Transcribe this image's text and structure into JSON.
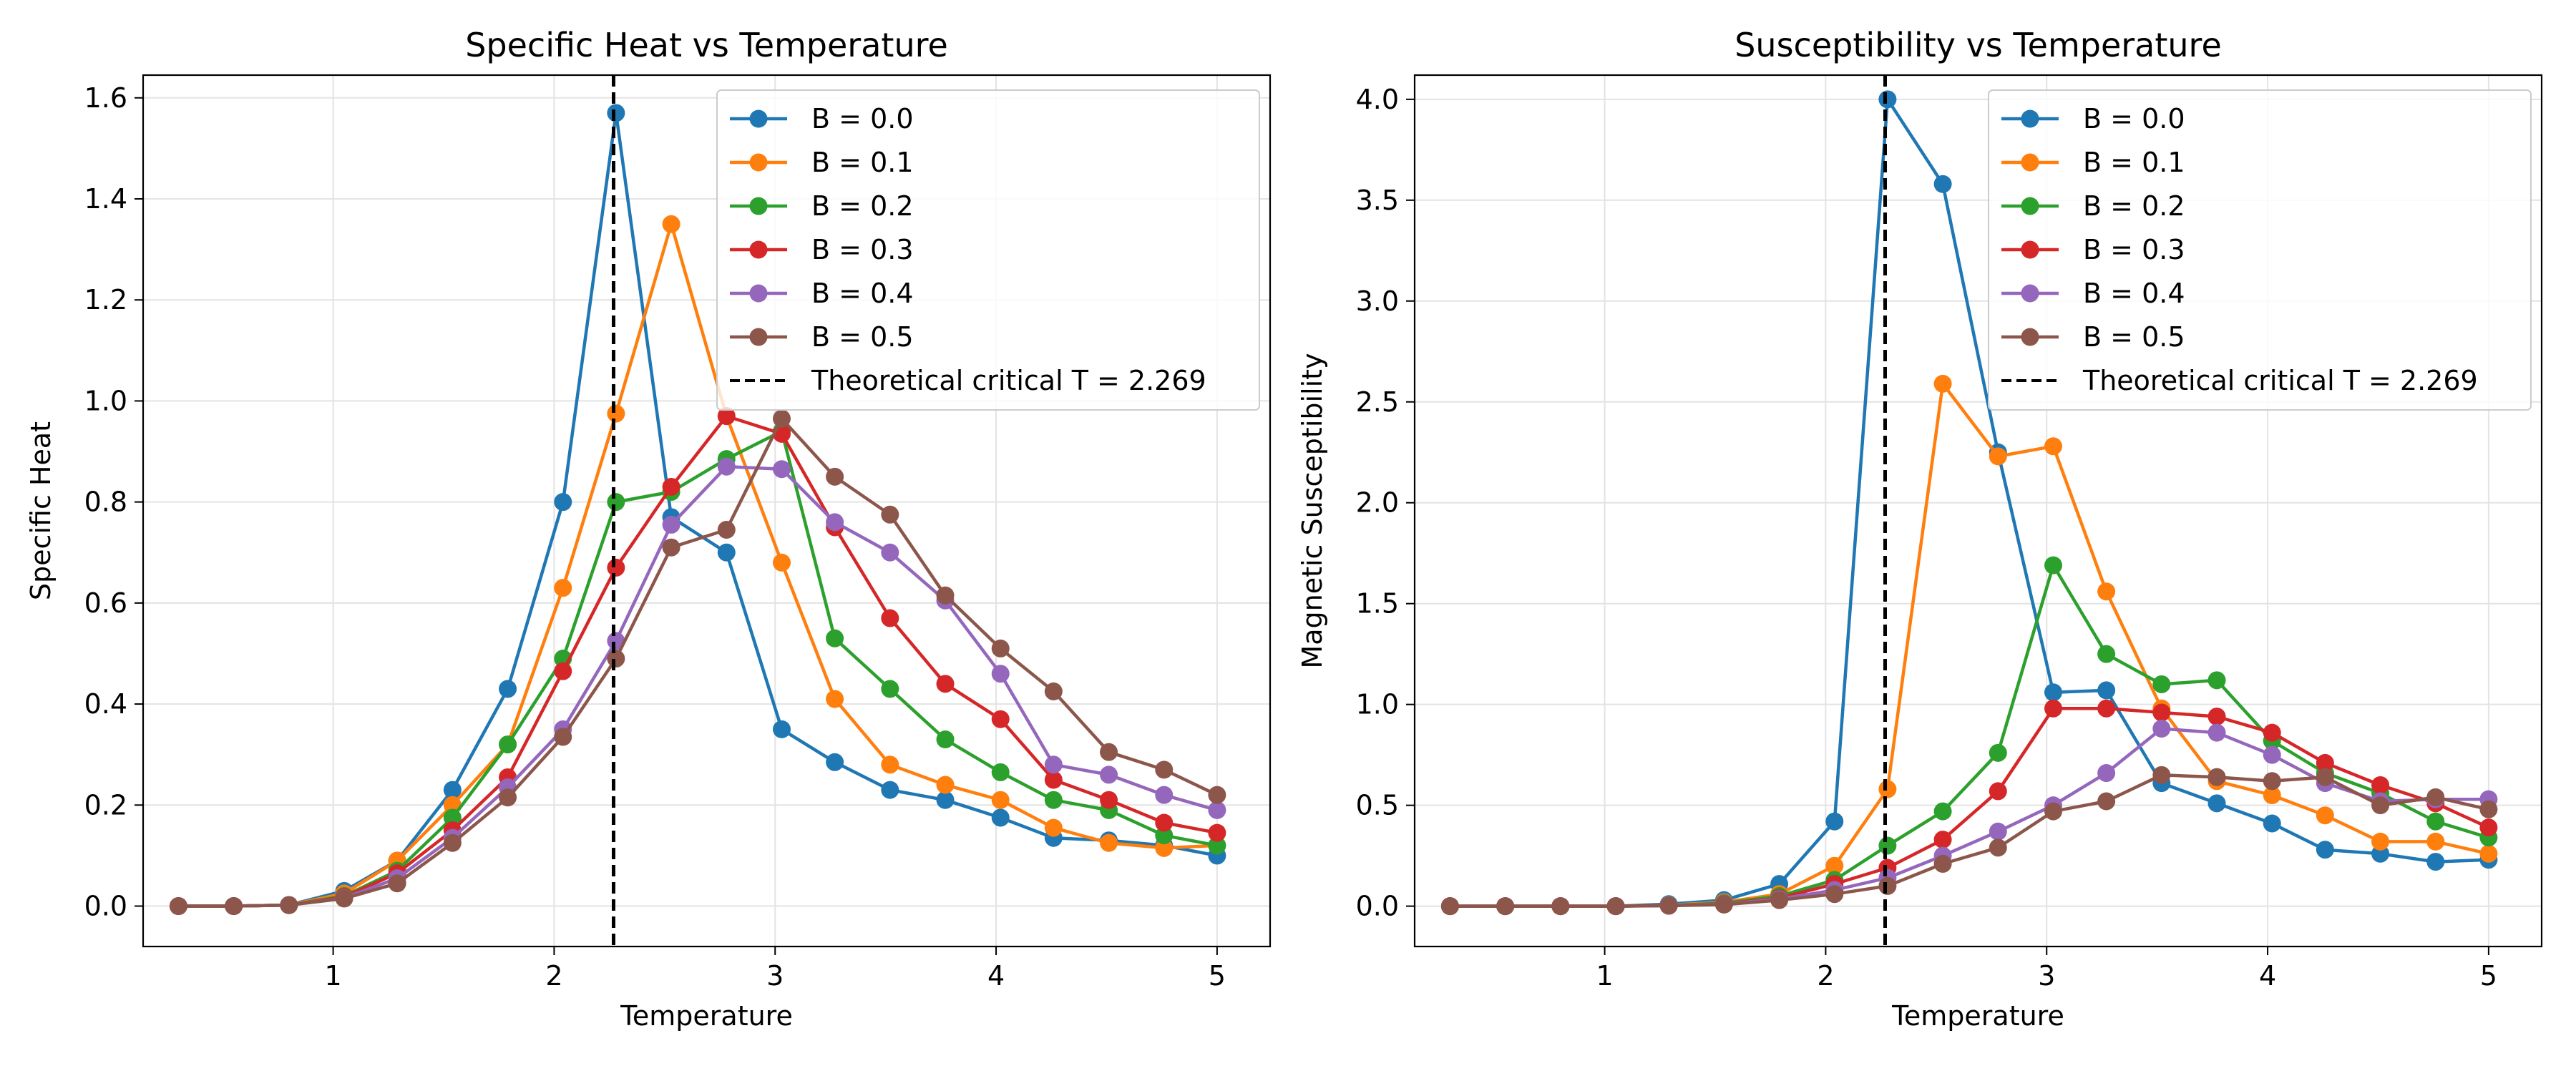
{
  "figure": {
    "background": "#ffffff"
  },
  "chart_data": [
    {
      "type": "line",
      "title": "Specific Heat vs Temperature",
      "xlabel": "Temperature",
      "ylabel": "Specific Heat",
      "xlim": [
        0.14,
        5.24
      ],
      "ylim": [
        -0.08,
        1.645
      ],
      "xticks": [
        1,
        2,
        3,
        4,
        5
      ],
      "xtick_labels": [
        "1",
        "2",
        "3",
        "4",
        "5"
      ],
      "yticks": [
        0.0,
        0.2,
        0.4,
        0.6,
        0.8,
        1.0,
        1.2,
        1.4,
        1.6
      ],
      "ytick_labels": [
        "0.0",
        "0.2",
        "0.4",
        "0.6",
        "0.8",
        "1.0",
        "1.2",
        "1.4",
        "1.6"
      ],
      "grid": true,
      "legend_position": "upper right",
      "x": [
        0.3,
        0.55,
        0.8,
        1.05,
        1.29,
        1.54,
        1.79,
        2.04,
        2.28,
        2.53,
        2.78,
        3.03,
        3.27,
        3.52,
        3.77,
        4.02,
        4.26,
        4.51,
        4.76,
        5.0
      ],
      "series": [
        {
          "name": "B = 0.0",
          "color": "#1f77b4",
          "values": [
            0.0,
            0.0,
            0.002,
            0.03,
            0.09,
            0.23,
            0.43,
            0.8,
            1.57,
            0.77,
            0.7,
            0.35,
            0.285,
            0.23,
            0.21,
            0.175,
            0.135,
            0.13,
            0.12,
            0.1
          ]
        },
        {
          "name": "B = 0.1",
          "color": "#ff7f0e",
          "values": [
            0.0,
            0.0,
            0.002,
            0.025,
            0.09,
            0.2,
            0.32,
            0.63,
            0.975,
            1.35,
            0.97,
            0.68,
            0.41,
            0.28,
            0.24,
            0.21,
            0.155,
            0.125,
            0.115,
            0.12
          ]
        },
        {
          "name": "B = 0.2",
          "color": "#2ca02c",
          "values": [
            0.0,
            0.0,
            0.002,
            0.02,
            0.07,
            0.175,
            0.32,
            0.49,
            0.8,
            0.82,
            0.885,
            0.94,
            0.53,
            0.43,
            0.33,
            0.265,
            0.21,
            0.19,
            0.14,
            0.12
          ]
        },
        {
          "name": "B = 0.3",
          "color": "#d62728",
          "values": [
            0.0,
            0.0,
            0.002,
            0.018,
            0.065,
            0.15,
            0.255,
            0.465,
            0.67,
            0.83,
            0.97,
            0.935,
            0.75,
            0.57,
            0.44,
            0.37,
            0.25,
            0.21,
            0.165,
            0.145
          ]
        },
        {
          "name": "B = 0.4",
          "color": "#9467bd",
          "values": [
            0.0,
            0.0,
            0.002,
            0.016,
            0.055,
            0.135,
            0.235,
            0.35,
            0.525,
            0.755,
            0.87,
            0.865,
            0.76,
            0.7,
            0.605,
            0.46,
            0.28,
            0.26,
            0.22,
            0.19
          ]
        },
        {
          "name": "B = 0.5",
          "color": "#8c564b",
          "values": [
            0.0,
            0.0,
            0.002,
            0.015,
            0.045,
            0.125,
            0.215,
            0.335,
            0.49,
            0.71,
            0.745,
            0.965,
            0.85,
            0.775,
            0.615,
            0.51,
            0.425,
            0.305,
            0.27,
            0.22
          ]
        }
      ],
      "reference_line": {
        "label": "Theoretical critical T = 2.269",
        "x": 2.269,
        "style": "dashed",
        "color": "#000000"
      }
    },
    {
      "type": "line",
      "title": "Susceptibility vs Temperature",
      "xlabel": "Temperature",
      "ylabel": "Magnetic Susceptibility",
      "xlim": [
        0.14,
        5.24
      ],
      "ylim": [
        -0.2,
        4.12
      ],
      "xticks": [
        1,
        2,
        3,
        4,
        5
      ],
      "xtick_labels": [
        "1",
        "2",
        "3",
        "4",
        "5"
      ],
      "yticks": [
        0.0,
        0.5,
        1.0,
        1.5,
        2.0,
        2.5,
        3.0,
        3.5,
        4.0
      ],
      "ytick_labels": [
        "0.0",
        "0.5",
        "1.0",
        "1.5",
        "2.0",
        "2.5",
        "3.0",
        "3.5",
        "4.0"
      ],
      "grid": true,
      "legend_position": "upper right",
      "x": [
        0.3,
        0.55,
        0.8,
        1.05,
        1.29,
        1.54,
        1.79,
        2.04,
        2.28,
        2.53,
        2.78,
        3.03,
        3.27,
        3.52,
        3.77,
        4.02,
        4.26,
        4.51,
        4.76,
        5.0
      ],
      "series": [
        {
          "name": "B = 0.0",
          "color": "#1f77b4",
          "values": [
            0.0,
            0.0,
            0.0,
            0.0,
            0.01,
            0.03,
            0.11,
            0.42,
            4.0,
            3.58,
            2.25,
            1.06,
            1.07,
            0.61,
            0.51,
            0.41,
            0.28,
            0.26,
            0.22,
            0.23
          ]
        },
        {
          "name": "B = 0.1",
          "color": "#ff7f0e",
          "values": [
            0.0,
            0.0,
            0.0,
            0.0,
            0.005,
            0.02,
            0.06,
            0.2,
            0.58,
            2.59,
            2.23,
            2.28,
            1.56,
            0.98,
            0.62,
            0.55,
            0.45,
            0.32,
            0.32,
            0.26
          ]
        },
        {
          "name": "B = 0.2",
          "color": "#2ca02c",
          "values": [
            0.0,
            0.0,
            0.0,
            0.0,
            0.004,
            0.015,
            0.05,
            0.13,
            0.3,
            0.47,
            0.76,
            1.69,
            1.25,
            1.1,
            1.12,
            0.82,
            0.66,
            0.56,
            0.42,
            0.34
          ]
        },
        {
          "name": "B = 0.3",
          "color": "#d62728",
          "values": [
            0.0,
            0.0,
            0.0,
            0.0,
            0.003,
            0.012,
            0.04,
            0.11,
            0.19,
            0.33,
            0.57,
            0.98,
            0.98,
            0.96,
            0.94,
            0.86,
            0.71,
            0.6,
            0.51,
            0.39
          ]
        },
        {
          "name": "B = 0.4",
          "color": "#9467bd",
          "values": [
            0.0,
            0.0,
            0.0,
            0.0,
            0.003,
            0.01,
            0.035,
            0.08,
            0.14,
            0.25,
            0.37,
            0.5,
            0.66,
            0.88,
            0.86,
            0.75,
            0.61,
            0.52,
            0.53,
            0.53
          ]
        },
        {
          "name": "B = 0.5",
          "color": "#8c564b",
          "values": [
            0.0,
            0.0,
            0.0,
            0.0,
            0.002,
            0.008,
            0.03,
            0.06,
            0.1,
            0.21,
            0.29,
            0.47,
            0.52,
            0.65,
            0.64,
            0.62,
            0.64,
            0.5,
            0.54,
            0.48
          ]
        }
      ],
      "reference_line": {
        "label": "Theoretical critical T = 2.269",
        "x": 2.269,
        "style": "dashed",
        "color": "#000000"
      }
    }
  ]
}
